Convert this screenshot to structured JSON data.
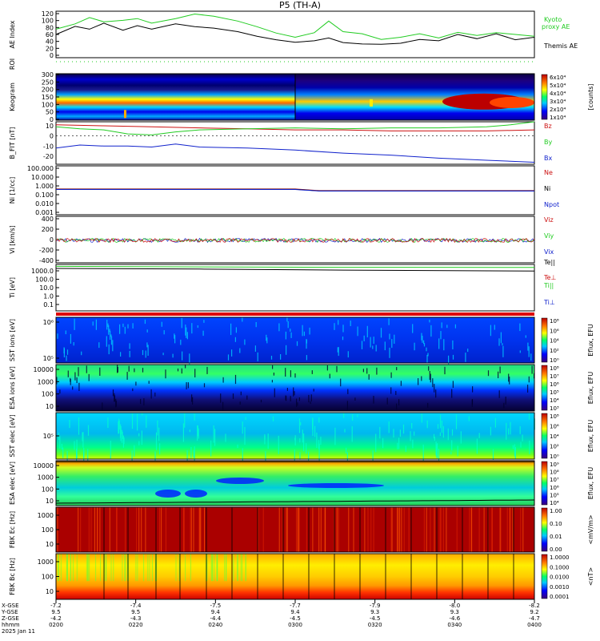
{
  "title": "P5 (TH-A)",
  "date_label": "2025 Jan 11",
  "colors": {
    "green": "#22cc22",
    "black": "#000000",
    "red": "#cc1111",
    "blue": "#1122cc",
    "olive": "#7a7a00"
  },
  "chart_data": [
    {
      "panel": "ae",
      "type": "line",
      "ylabel": "AE Index",
      "yticks": [
        "120",
        "100",
        "80",
        "60",
        "40",
        "20",
        "0"
      ],
      "legend": [
        "Kyoto",
        "proxy AE",
        "Themis AE"
      ],
      "series": [
        {
          "name": "Kyoto proxy AE",
          "color": "green",
          "x": [
            0,
            0.04,
            0.07,
            0.1,
            0.14,
            0.17,
            0.2,
            0.25,
            0.29,
            0.33,
            0.38,
            0.42,
            0.46,
            0.5,
            0.54,
            0.57,
            0.6,
            0.64,
            0.68,
            0.72,
            0.76,
            0.8,
            0.84,
            0.88,
            0.92,
            0.96,
            1.0
          ],
          "values": [
            75,
            90,
            108,
            96,
            100,
            105,
            92,
            105,
            118,
            112,
            98,
            82,
            64,
            52,
            65,
            98,
            68,
            62,
            46,
            52,
            62,
            50,
            66,
            57,
            65,
            60,
            55
          ]
        },
        {
          "name": "Themis AE",
          "color": "black",
          "x": [
            0,
            0.04,
            0.07,
            0.1,
            0.14,
            0.17,
            0.2,
            0.25,
            0.29,
            0.33,
            0.38,
            0.42,
            0.46,
            0.5,
            0.54,
            0.57,
            0.6,
            0.64,
            0.68,
            0.72,
            0.76,
            0.8,
            0.84,
            0.88,
            0.92,
            0.96,
            1.0
          ],
          "values": [
            60,
            83,
            75,
            92,
            72,
            85,
            75,
            90,
            82,
            78,
            68,
            55,
            45,
            38,
            42,
            50,
            37,
            33,
            32,
            35,
            46,
            42,
            60,
            48,
            62,
            45,
            52
          ]
        }
      ]
    },
    {
      "panel": "roi",
      "type": "line",
      "ylabel": "ROI",
      "series": []
    },
    {
      "panel": "keogram",
      "type": "heatmap",
      "ylabel": "Keogram",
      "yticks": [
        "300",
        "250",
        "200",
        "150",
        "100",
        "50",
        "0"
      ],
      "colorbar": {
        "label": "[counts]",
        "ticks": [
          "6x10⁴",
          "5x10⁴",
          "4x10⁴",
          "3x10⁴",
          "2x10⁴",
          "1x10⁴"
        ]
      }
    },
    {
      "panel": "bfield",
      "type": "line",
      "ylabel": "B_FIT [nT]",
      "yticks": [
        "10",
        "0",
        "-10",
        "-20"
      ],
      "ylim": [
        -28,
        14
      ],
      "series": [
        {
          "name": "Bz",
          "color": "red",
          "x": [
            0,
            0.1,
            0.2,
            0.3,
            0.4,
            0.5,
            0.6,
            0.7,
            0.8,
            0.9,
            1.0
          ],
          "values": [
            11,
            10,
            9,
            8,
            7,
            6,
            6,
            5,
            5,
            5,
            6
          ]
        },
        {
          "name": "By",
          "color": "green",
          "x": [
            0,
            0.05,
            0.1,
            0.15,
            0.2,
            0.25,
            0.3,
            0.4,
            0.5,
            0.6,
            0.7,
            0.8,
            0.9,
            0.95,
            1.0
          ],
          "values": [
            9,
            7,
            6,
            2,
            1,
            4,
            6,
            7,
            8,
            7,
            8,
            8,
            9,
            11,
            14
          ]
        },
        {
          "name": "Bx",
          "color": "blue",
          "x": [
            0,
            0.05,
            0.1,
            0.15,
            0.2,
            0.25,
            0.3,
            0.4,
            0.5,
            0.6,
            0.7,
            0.8,
            0.9,
            1.0
          ],
          "values": [
            -12,
            -9,
            -10,
            -10,
            -11,
            -8,
            -11,
            -12,
            -14,
            -17,
            -19,
            -22,
            -24,
            -26
          ]
        }
      ]
    },
    {
      "panel": "density",
      "type": "line",
      "ylabel": "Ni [1/cc]",
      "yticks": [
        "100.000",
        "10.000",
        "1.000",
        "0.100",
        "0.010",
        "0.001"
      ],
      "series": [
        {
          "name": "Ne",
          "color": "red",
          "x": [
            0,
            0.5,
            0.55,
            1.0
          ],
          "values": [
            0.45,
            0.45,
            0.3,
            0.3
          ]
        },
        {
          "name": "Ni",
          "color": "black",
          "x": [
            0,
            0.5,
            0.55,
            1.0
          ],
          "values": [
            0.42,
            0.42,
            0.28,
            0.28
          ]
        },
        {
          "name": "Npot",
          "color": "blue",
          "x": [
            0,
            0.5,
            0.55,
            1.0
          ],
          "values": [
            0.4,
            0.4,
            0.27,
            0.27
          ]
        }
      ]
    },
    {
      "panel": "velocity",
      "type": "line",
      "ylabel": "Vi [km/s]",
      "yticks": [
        "400",
        "200",
        "0",
        "-200",
        "-400"
      ],
      "series": [
        {
          "name": "Viz",
          "color": "red",
          "values": [
            0
          ]
        },
        {
          "name": "Viy",
          "color": "green",
          "values": [
            0
          ]
        },
        {
          "name": "Vix",
          "color": "blue",
          "values": [
            0
          ]
        }
      ]
    },
    {
      "panel": "temperature",
      "type": "line",
      "ylabel": "Ti [eV]",
      "yticks": [
        "1000.0",
        "100.0",
        "10.0",
        "1.0",
        "0.1"
      ],
      "series": [
        {
          "name": "Te||",
          "color": "black",
          "x": [
            0,
            0.3,
            0.6,
            1.0
          ],
          "values": [
            1500,
            1300,
            1000,
            800
          ]
        },
        {
          "name": "Te⊥",
          "color": "red",
          "values": []
        },
        {
          "name": "Ti||",
          "color": "green",
          "x": [
            0,
            0.3,
            0.6,
            1.0
          ],
          "values": [
            2500,
            2200,
            2000,
            1900
          ]
        },
        {
          "name": "Ti⊥",
          "color": "blue",
          "values": []
        }
      ]
    },
    {
      "panel": "sst_ion",
      "type": "heatmap",
      "ylabel": "SST ions [eV]",
      "yticks": [
        "10⁶",
        "10⁵"
      ],
      "colorbar": {
        "label": "Eflux, EFU",
        "ticks": [
          "10⁸",
          "10⁶",
          "10⁴",
          "10²",
          "10⁰"
        ]
      }
    },
    {
      "panel": "esa_ion",
      "type": "heatmap",
      "ylabel": "ESA ions [eV]",
      "yticks": [
        "10000",
        "1000",
        "100",
        "10"
      ],
      "colorbar": {
        "label": "Eflux, EFU",
        "ticks": [
          "10⁸",
          "10⁷",
          "10⁶",
          "10⁵",
          "10⁴",
          "10³"
        ]
      }
    },
    {
      "panel": "sst_elec",
      "type": "heatmap",
      "ylabel": "SST elec [eV]",
      "yticks": [
        "10⁵"
      ],
      "colorbar": {
        "label": "Eflux, EFU",
        "ticks": [
          "10⁸",
          "10⁶",
          "10⁴",
          "10²",
          "10⁰"
        ]
      }
    },
    {
      "panel": "esa_elec",
      "type": "heatmap",
      "ylabel": "ESA elec [eV]",
      "yticks": [
        "10000",
        "1000",
        "100",
        "10"
      ],
      "colorbar": {
        "label": "Eflux, EFU",
        "ticks": [
          "10⁹",
          "10⁸",
          "10⁷",
          "10⁶",
          "10⁵",
          "10⁴"
        ]
      }
    },
    {
      "panel": "fbk_e",
      "type": "heatmap",
      "ylabel": "FBK Ec [Hz]",
      "yticks": [
        "1000",
        "100",
        "10"
      ],
      "colorbar": {
        "label": "<mV/m>",
        "ticks": [
          "1.00",
          "0.10",
          "0.01",
          "0.00"
        ]
      }
    },
    {
      "panel": "fbk_b",
      "type": "heatmap",
      "ylabel": "FBK Bc [Hz]",
      "yticks": [
        "1000",
        "100",
        "10"
      ],
      "colorbar": {
        "label": "<nT>",
        "ticks": [
          "1.0000",
          "0.1000",
          "0.0100",
          "0.0010",
          "0.0001"
        ]
      }
    }
  ],
  "xaxis": {
    "row_labels": [
      "X-GSE",
      "Y-GSE",
      "Z-GSE",
      "hhmm"
    ],
    "ticks": [
      {
        "x": "-7.2",
        "y": "9.5",
        "z": "-4.2",
        "t": "0200"
      },
      {
        "x": "-7.4",
        "y": "9.5",
        "z": "-4.3",
        "t": "0220"
      },
      {
        "x": "-7.5",
        "y": "9.4",
        "z": "-4.4",
        "t": "0240"
      },
      {
        "x": "-7.7",
        "y": "9.4",
        "z": "-4.5",
        "t": "0300"
      },
      {
        "x": "-7.9",
        "y": "9.3",
        "z": "-4.5",
        "t": "0320"
      },
      {
        "x": "-8.0",
        "y": "9.3",
        "z": "-4.6",
        "t": "0340"
      },
      {
        "x": "-8.2",
        "y": "9.2",
        "z": "-4.7",
        "t": "0400"
      }
    ]
  }
}
